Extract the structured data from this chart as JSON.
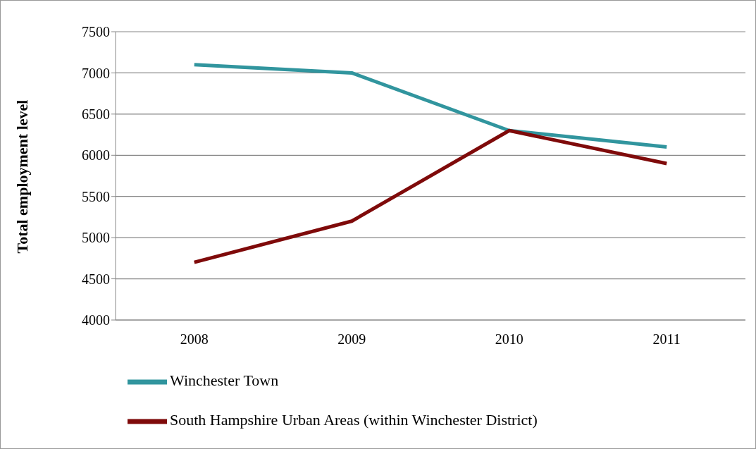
{
  "chart_data": {
    "type": "line",
    "ylabel": "Total employment level",
    "categories": [
      "2008",
      "2009",
      "2010",
      "2011"
    ],
    "series": [
      {
        "name": "Winchester Town",
        "color": "#31959e",
        "values": [
          7100,
          7000,
          6300,
          6100
        ]
      },
      {
        "name": "South Hampshire Urban Areas (within Winchester District)",
        "color": "#7f0a0a",
        "values": [
          4700,
          5200,
          6300,
          5900
        ]
      }
    ],
    "ylim": [
      4000,
      7500
    ],
    "yticks": [
      4000,
      4500,
      5000,
      5500,
      6000,
      6500,
      7000,
      7500
    ],
    "grid": "y",
    "legend": "bottom",
    "marker": "none",
    "line_style": "solid"
  }
}
